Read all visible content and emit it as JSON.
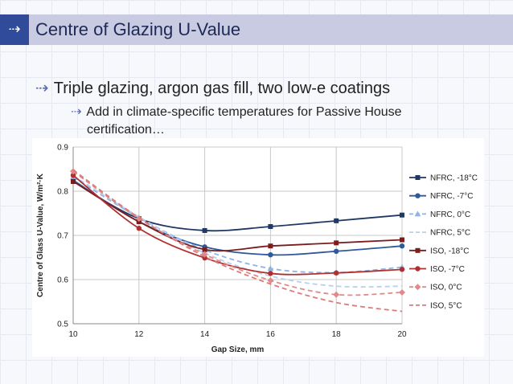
{
  "header": {
    "title": "Centre of Glazing U-Value",
    "icon": "dotted-arrow-icon"
  },
  "bullets": {
    "level1": "Triple glazing, argon gas fill, two low-e coatings",
    "level2_line1": "Add in climate-specific temperatures for Passive House",
    "level2_line2": "certification…",
    "arrow_glyph": "⇢"
  },
  "chart_data": {
    "type": "line",
    "xlabel": "Gap Size, mm",
    "ylabel": "Centre of Glass U-Value, W/m²·K",
    "xlim": [
      10,
      20
    ],
    "ylim": [
      0.5,
      0.9
    ],
    "xticks": [
      10,
      12,
      14,
      16,
      18,
      20
    ],
    "yticks": [
      0.5,
      0.6,
      0.7,
      0.8,
      0.9
    ],
    "ytick_labels": [
      "0.5",
      "0.6",
      "0.7",
      "0.8",
      "0.9"
    ],
    "grid": true,
    "legend_position": "right",
    "x": [
      10,
      12,
      14,
      16,
      18,
      20
    ],
    "series": [
      {
        "name": "NFRC, -18°C",
        "values": [
          0.822,
          0.738,
          0.711,
          0.72,
          0.733,
          0.746
        ],
        "color": "#1f3864",
        "dash": "solid",
        "marker": "square"
      },
      {
        "name": "NFRC, -7°C",
        "values": [
          0.825,
          0.731,
          0.674,
          0.656,
          0.664,
          0.676
        ],
        "color": "#2e5a9c",
        "dash": "solid",
        "marker": "circle"
      },
      {
        "name": "NFRC, 0°C",
        "values": [
          0.832,
          0.74,
          0.667,
          0.625,
          0.616,
          0.628
        ],
        "color": "#8fb4e3",
        "dash": "dashed",
        "marker": "triangle"
      },
      {
        "name": "NFRC, 5°C",
        "values": [
          0.835,
          0.742,
          0.66,
          0.608,
          0.585,
          0.585
        ],
        "color": "#b8d0ee",
        "dash": "dashed",
        "marker": "none"
      },
      {
        "name": "ISO, -18°C",
        "values": [
          0.822,
          0.731,
          0.668,
          0.676,
          0.683,
          0.69
        ],
        "color": "#7b1d1d",
        "dash": "solid",
        "marker": "square"
      },
      {
        "name": "ISO, -7°C",
        "values": [
          0.836,
          0.716,
          0.649,
          0.614,
          0.615,
          0.623
        ],
        "color": "#b03030",
        "dash": "solid",
        "marker": "circle"
      },
      {
        "name": "ISO, 0°C",
        "values": [
          0.845,
          0.738,
          0.657,
          0.598,
          0.566,
          0.571
        ],
        "color": "#e08b8b",
        "dash": "dashed",
        "marker": "diamond"
      },
      {
        "name": "ISO, 5°C",
        "values": [
          0.848,
          0.74,
          0.652,
          0.59,
          0.548,
          0.528
        ],
        "color": "#dd7a7a",
        "dash": "dashed",
        "marker": "none"
      }
    ]
  }
}
